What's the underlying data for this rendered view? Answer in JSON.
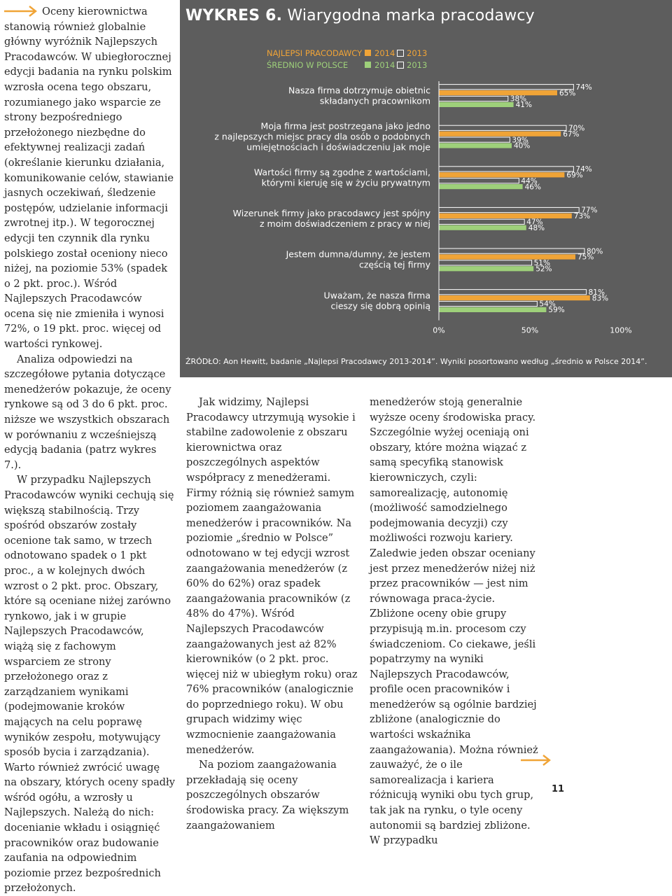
{
  "article": {
    "col1": [
      "Oceny kierownictwa stanowią również globalnie główny wyróżnik Najlepszych Pracodawców. W ubiegłorocznej edycji badania na rynku polskim wzrosła ocena tego obszaru, rozumianego jako wsparcie ze strony bezpośredniego przełożonego niezbędne do efektywnej realizacji zadań (określanie kierunku działania, komunikowanie celów, stawianie jasnych oczekiwań, śledzenie postępów, udzielanie informacji zwrotnej itp.). W tegorocznej edycji ten czynnik dla rynku polskiego został oceniony nieco niżej, na poziomie 53% (spadek o 2 pkt. proc.). Wśród Najlepszych Pracodawców ocena się nie zmieniła i wynosi 72%, o 19 pkt. proc. więcej od wartości rynkowej.",
      "Analiza odpowiedzi na szczegółowe pytania dotyczące menedżerów pokazuje, że oceny rynkowe są od 3 do 6 pkt. proc. niższe we wszystkich obszarach w porównaniu z wcześniejszą edycją badania (patrz wykres 7.).",
      "W przypadku Najlepszych Pracodawców wyniki cechują się większą stabilnością. Trzy spośród obszarów zostały ocenione tak samo, w trzech odnotowano spadek o 1 pkt proc., a w kolejnych dwóch wzrost o 2 pkt. proc. Obszary, które są oceniane niżej zarówno rynkowo, jak i w grupie Najlepszych Pracodawców, wiążą się z fachowym wsparciem ze strony przełożonego oraz z zarządzaniem wynikami (podejmowanie kroków mających na celu poprawę wyników zespołu, motywujący sposób bycia i zarządzania). Warto również zwrócić uwagę na obszary, których oceny spadły wśród ogółu, a wzrosły u Najlepszych. Należą do nich: docenianie wkładu i osiągnięć pracowników oraz budowanie zaufania na odpowiednim poziomie przez bezpośrednich przełożonych."
    ],
    "col2": [
      "Jak widzimy, Najlepsi Pracodawcy utrzymują wysokie i stabilne zadowolenie z obszaru kierownictwa oraz poszczególnych aspektów współpracy z menedżerami. Firmy różnią się również samym poziomem zaangażowania menedżerów i pracowników. Na poziomie „średnio w Polsce” odnotowano w tej edycji wzrost zaangażowania menedżerów (z 60% do 62%) oraz spadek zaangażowania pracowników (z 48% do 47%). Wśród Najlepszych Pracodawców zaangażowanych jest aż 82% kierowników (o 2 pkt. proc. więcej niż w ubiegłym roku) oraz 76% pracowników (analogicznie do poprzedniego roku). W obu grupach widzimy więc wzmocnienie zaangażowania menedżerów.",
      "Na poziom zaangażowania przekładają się oceny poszczególnych obszarów środowiska pracy. Za większym zaangażowaniem"
    ],
    "col3": [
      "menedżerów stoją generalnie wyższe oceny środowiska pracy. Szczególnie wyżej oceniają oni obszary, które można wiązać z samą specyfiką stanowisk kierowniczych, czyli: samorealizację, autonomię (możliwość samodzielnego podejmowania decyzji) czy możliwości rozwoju kariery. Zaledwie jeden obszar oceniany jest przez menedżerów niżej niż przez pracowników — jest nim równowaga praca-życie. Zbliżone oceny obie grupy przypisują m.in. procesom czy świadczeniom. Co ciekawe, jeśli popatrzymy na wyniki Najlepszych Pracodawców, profile ocen pracowników i menedżerów są ogólnie bardziej zbliżone (analogicznie do wartości wskaźnika zaangażowania). Można również zauważyć, że o ile samorealizacja i kariera różnicują wyniki obu tych grup, tak jak na rynku, o tyle oceny autonomii są bardziej zbliżone. W przypadku"
    ]
  },
  "chart": {
    "title_bold": "WYKRES 6.",
    "title_rest": " Wiarygodna marka pracodawcy",
    "legend": [
      {
        "name": "NAJLEPSI PRACODAWCY",
        "year_a": "2014",
        "year_b": "2013",
        "color_a": "#f0a437",
        "color_b": "#ffffff"
      },
      {
        "name": "ŚREDNIO W POLSCE",
        "year_a": "2014",
        "year_b": "2013",
        "color_a": "#9ed07a",
        "color_b": "#ffffff"
      }
    ],
    "source": "ŹRÓDŁO: Aon Hewitt, badanie „Najlepsi Pracodawcy 2013-2014”. Wyniki posortowano według „średnio w Polsce 2014”."
  },
  "chart_data": {
    "type": "bar",
    "orientation": "horizontal",
    "title": "Wiarygodna marka pracodawcy",
    "categories": [
      [
        "Nasza firma dotrzymuje obietnic",
        "składanych pracownikom"
      ],
      [
        "Moja firma jest postrzegana jako jedno",
        "z najlepszych miejsc pracy dla osób o podobnych",
        "umiejętnościach i doświadczeniu jak moje"
      ],
      [
        "Wartości firmy są zgodne z wartościami,",
        "którymi kieruję się w życiu prywatnym"
      ],
      [
        "Wizerunek firmy jako pracodawcy jest spójny",
        "z moim doświadczeniem z pracy w niej"
      ],
      [
        "Jestem dumna/dumny, że jestem",
        "częścią tej firmy"
      ],
      [
        "Uważam, że nasza firma",
        "cieszy się dobrą opinią"
      ]
    ],
    "series": [
      {
        "name": "NAJLEPSI PRACODAWCY 2013",
        "color": "#ffffff",
        "values": [
          74,
          70,
          74,
          77,
          80,
          81
        ]
      },
      {
        "name": "NAJLEPSI PRACODAWCY 2014",
        "color": "#f0a437",
        "values": [
          65,
          67,
          69,
          73,
          75,
          83
        ]
      },
      {
        "name": "ŚREDNIO W POLSCE 2013",
        "color": "#ffffff",
        "values": [
          38,
          39,
          44,
          47,
          51,
          54
        ]
      },
      {
        "name": "ŚREDNIO W POLSCE 2014",
        "color": "#9ed07a",
        "values": [
          41,
          40,
          46,
          48,
          52,
          59
        ]
      }
    ],
    "xlim": [
      0,
      100
    ],
    "xticks": [
      "0%",
      "50%",
      "100%"
    ],
    "value_suffix": "%"
  },
  "page_number": "11"
}
